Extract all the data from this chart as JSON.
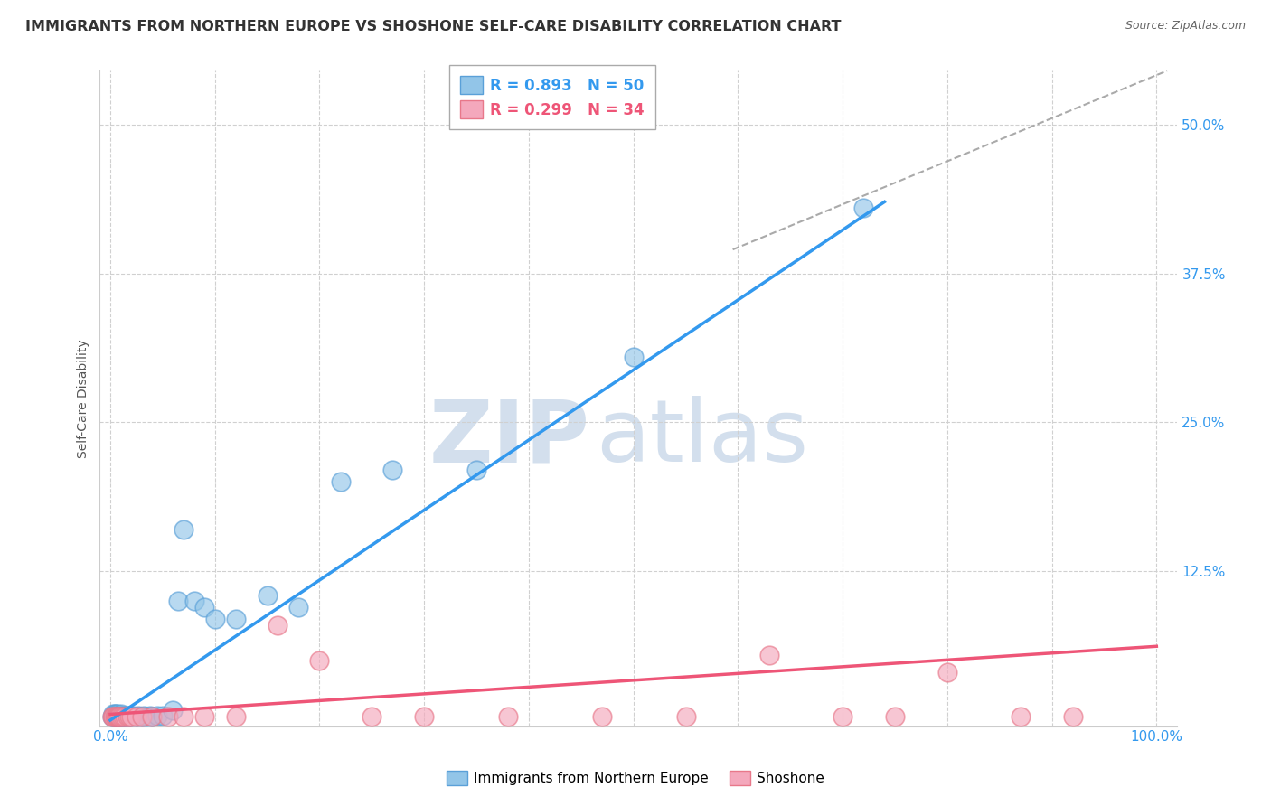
{
  "title": "IMMIGRANTS FROM NORTHERN EUROPE VS SHOSHONE SELF-CARE DISABILITY CORRELATION CHART",
  "source": "Source: ZipAtlas.com",
  "ylabel": "Self-Care Disability",
  "xlabel": "",
  "xlim": [
    -0.01,
    1.02
  ],
  "ylim": [
    -0.005,
    0.545
  ],
  "yticks": [
    0.0,
    0.125,
    0.25,
    0.375,
    0.5
  ],
  "ytick_labels": [
    "",
    "12.5%",
    "25.0%",
    "37.5%",
    "50.0%"
  ],
  "xtick_labels": [
    "0.0%",
    "",
    "",
    "",
    "",
    "",
    "",
    "",
    "",
    "",
    "100.0%"
  ],
  "blue_R": 0.893,
  "blue_N": 50,
  "pink_R": 0.299,
  "pink_N": 34,
  "blue_color": "#92c5e8",
  "blue_edge": "#5aa0d8",
  "pink_color": "#f4a8bc",
  "pink_edge": "#e8788a",
  "blue_label": "Immigrants from Northern Europe",
  "pink_label": "Shoshone",
  "background_color": "#ffffff",
  "grid_color": "#d0d0d0",
  "watermark_zip": "ZIP",
  "watermark_atlas": "atlas",
  "watermark_color": "#ccdaea",
  "blue_points_x": [
    0.002,
    0.003,
    0.003,
    0.004,
    0.004,
    0.005,
    0.005,
    0.006,
    0.006,
    0.007,
    0.007,
    0.008,
    0.008,
    0.009,
    0.009,
    0.01,
    0.01,
    0.011,
    0.012,
    0.013,
    0.014,
    0.015,
    0.016,
    0.017,
    0.018,
    0.02,
    0.022,
    0.025,
    0.027,
    0.03,
    0.032,
    0.035,
    0.038,
    0.04,
    0.045,
    0.05,
    0.06,
    0.065,
    0.07,
    0.08,
    0.09,
    0.1,
    0.12,
    0.15,
    0.18,
    0.22,
    0.27,
    0.35,
    0.5,
    0.72
  ],
  "blue_points_y": [
    0.003,
    0.005,
    0.003,
    0.003,
    0.005,
    0.003,
    0.005,
    0.003,
    0.004,
    0.003,
    0.005,
    0.003,
    0.004,
    0.003,
    0.004,
    0.003,
    0.005,
    0.003,
    0.004,
    0.003,
    0.004,
    0.003,
    0.004,
    0.003,
    0.004,
    0.003,
    0.004,
    0.003,
    0.004,
    0.003,
    0.004,
    0.003,
    0.004,
    0.003,
    0.004,
    0.004,
    0.008,
    0.1,
    0.16,
    0.1,
    0.095,
    0.085,
    0.085,
    0.105,
    0.095,
    0.2,
    0.21,
    0.21,
    0.305,
    0.43
  ],
  "pink_points_x": [
    0.002,
    0.003,
    0.004,
    0.005,
    0.006,
    0.007,
    0.008,
    0.009,
    0.01,
    0.012,
    0.014,
    0.016,
    0.018,
    0.02,
    0.025,
    0.03,
    0.04,
    0.055,
    0.07,
    0.09,
    0.12,
    0.16,
    0.2,
    0.25,
    0.3,
    0.38,
    0.47,
    0.55,
    0.63,
    0.7,
    0.75,
    0.8,
    0.87,
    0.92
  ],
  "pink_points_y": [
    0.003,
    0.003,
    0.003,
    0.003,
    0.003,
    0.003,
    0.003,
    0.003,
    0.003,
    0.003,
    0.003,
    0.003,
    0.003,
    0.003,
    0.003,
    0.003,
    0.003,
    0.003,
    0.003,
    0.003,
    0.003,
    0.08,
    0.05,
    0.003,
    0.003,
    0.003,
    0.003,
    0.003,
    0.055,
    0.003,
    0.003,
    0.04,
    0.003,
    0.003
  ],
  "blue_line_x": [
    0.0,
    0.74
  ],
  "blue_line_y": [
    0.0,
    0.435
  ],
  "pink_line_x": [
    0.0,
    1.0
  ],
  "pink_line_y": [
    0.005,
    0.062
  ],
  "diag_line_x": [
    0.595,
    1.01
  ],
  "diag_line_y": [
    0.395,
    0.545
  ]
}
